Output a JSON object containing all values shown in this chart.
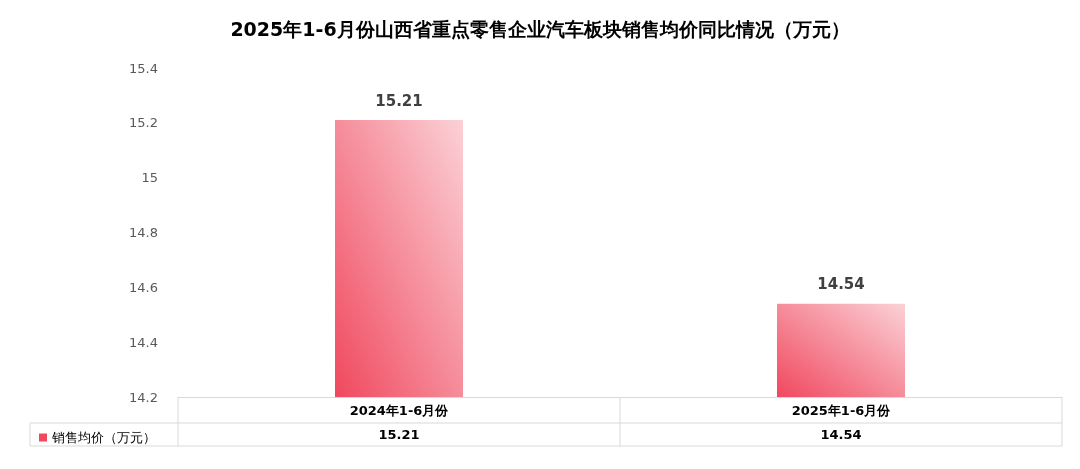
{
  "chart_data": {
    "type": "bar",
    "title": "2025年1-6月份山西省重点零售企业汽车板块销售均价同比情况（万元）",
    "categories": [
      "2024年1-6月份",
      "2025年1-6月份"
    ],
    "series": [
      {
        "name": "销售均价（万元）",
        "color": "#f0485e",
        "values": [
          15.21,
          14.54
        ],
        "value_labels": [
          "15.21",
          "14.54"
        ]
      }
    ],
    "ylim": [
      14.2,
      15.4
    ],
    "yticks": [
      14.2,
      14.4,
      14.6,
      14.8,
      15,
      15.2,
      15.4
    ],
    "grid": false,
    "legend": "bottom left",
    "annotations": [
      "15.21",
      "14.54"
    ]
  }
}
